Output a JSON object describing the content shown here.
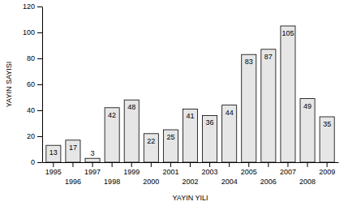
{
  "chart_data": {
    "type": "bar",
    "x_label": "YAYIN YILI",
    "y_label": "YAYIN SAYISI",
    "categories": [
      "1995",
      "1996",
      "1997",
      "1998",
      "1999",
      "2000",
      "2001",
      "2002",
      "2003",
      "2004",
      "2005",
      "2006",
      "2007",
      "2008",
      "2009"
    ],
    "values": [
      13,
      17,
      3,
      42,
      48,
      22,
      25,
      41,
      36,
      44,
      83,
      87,
      105,
      49,
      35
    ],
    "color": "#e6e6e6",
    "ylim": [
      0,
      120
    ],
    "yticks": [
      0,
      20,
      40,
      60,
      80,
      100,
      120
    ],
    "grid": false,
    "data_labels": true
  }
}
